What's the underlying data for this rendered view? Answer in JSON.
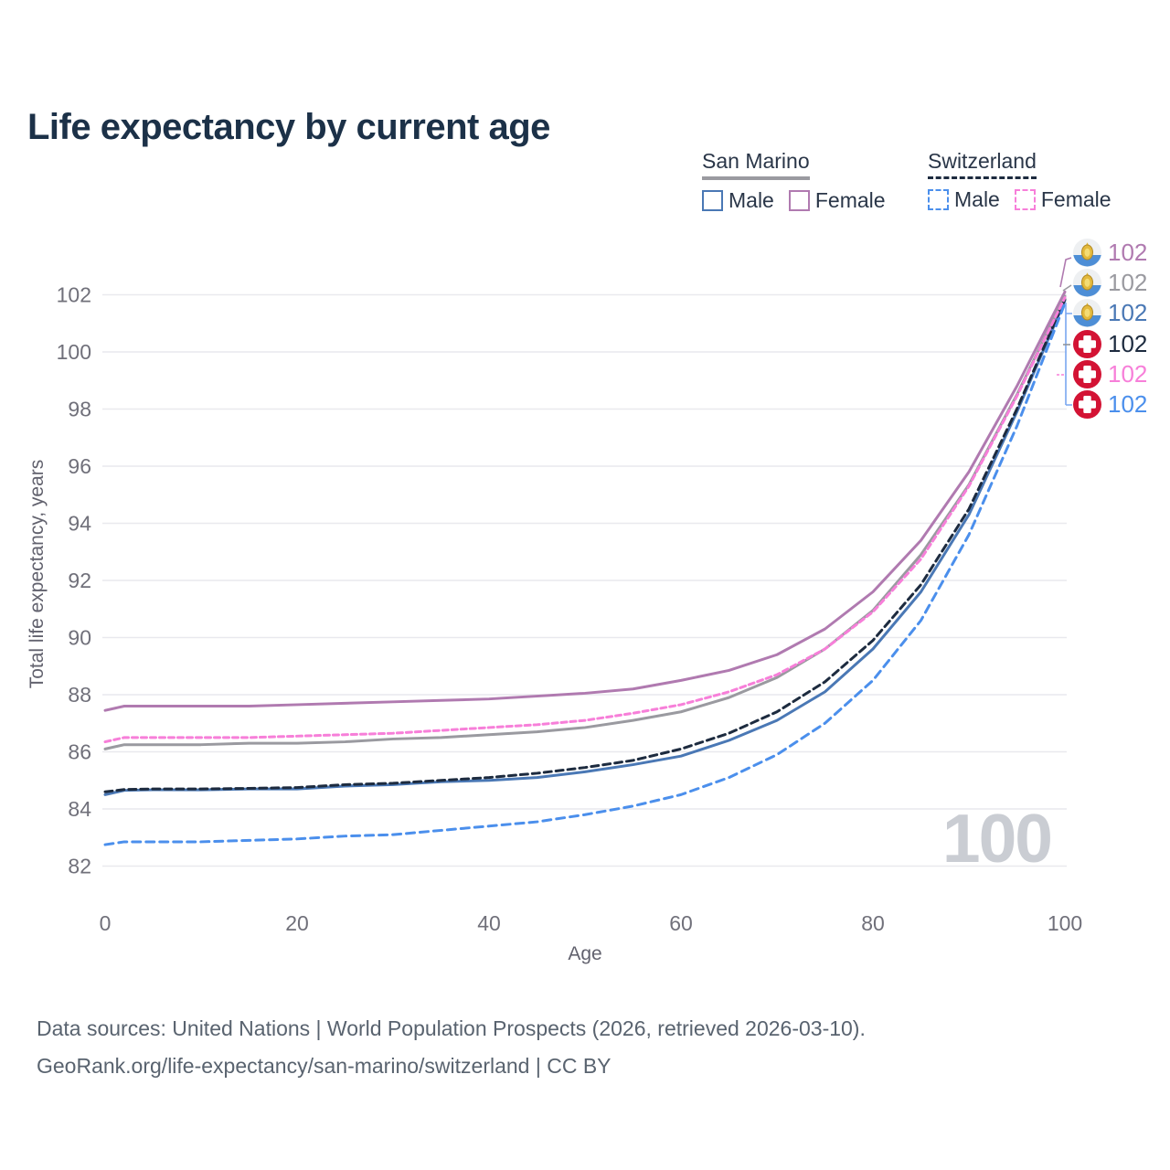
{
  "title": "Life expectancy by current age",
  "watermark": "100",
  "legend": {
    "groups": [
      {
        "id": "san-marino",
        "title": "San Marino",
        "line_style": "solid",
        "underline_color": "#9a9aa0",
        "items": [
          {
            "id": "male",
            "label": "Male",
            "color": "#4a78b5"
          },
          {
            "id": "female",
            "label": "Female",
            "color": "#b07ab0"
          }
        ]
      },
      {
        "id": "switzerland",
        "title": "Switzerland",
        "line_style": "dashed",
        "underline_color": "#1d2b3f",
        "items": [
          {
            "id": "male",
            "label": "Male",
            "color": "#4b8fec"
          },
          {
            "id": "female",
            "label": "Female",
            "color": "#f77fd9"
          }
        ]
      }
    ]
  },
  "axes": {
    "y_ticks": [
      82,
      84,
      86,
      88,
      90,
      92,
      94,
      96,
      98,
      100,
      102
    ],
    "x_ticks": [
      0,
      20,
      40,
      60,
      80,
      100
    ]
  },
  "chart_data": {
    "type": "line",
    "title": "Life expectancy by current age",
    "xlabel": "Age",
    "ylabel": "Total life expectancy, years",
    "xlim": [
      0,
      100
    ],
    "ylim": [
      82,
      103
    ],
    "grid": "horizontal",
    "x": [
      0,
      2,
      5,
      10,
      15,
      20,
      25,
      30,
      35,
      40,
      45,
      50,
      55,
      60,
      65,
      70,
      75,
      80,
      85,
      90,
      95,
      100
    ],
    "series": [
      {
        "id": "san-marino-female",
        "name": "San Marino Female",
        "color": "#b07ab0",
        "line_style": "solid",
        "values": [
          87.45,
          87.6,
          87.6,
          87.6,
          87.6,
          87.65,
          87.7,
          87.75,
          87.8,
          87.85,
          87.95,
          88.05,
          88.2,
          88.5,
          88.85,
          89.4,
          90.3,
          91.6,
          93.4,
          95.8,
          98.8,
          102.1
        ]
      },
      {
        "id": "san-marino-both",
        "name": "San Marino Both sexes",
        "color": "#9a9aa0",
        "line_style": "solid",
        "values": [
          86.1,
          86.25,
          86.25,
          86.25,
          86.3,
          86.3,
          86.35,
          86.45,
          86.5,
          86.6,
          86.7,
          86.85,
          87.1,
          87.4,
          87.9,
          88.6,
          89.6,
          90.95,
          92.9,
          95.35,
          98.5,
          101.95
        ]
      },
      {
        "id": "san-marino-male",
        "name": "San Marino Male",
        "color": "#4a78b5",
        "line_style": "solid",
        "values": [
          84.5,
          84.65,
          84.67,
          84.67,
          84.7,
          84.7,
          84.8,
          84.85,
          84.95,
          85.0,
          85.1,
          85.3,
          85.55,
          85.85,
          86.4,
          87.1,
          88.1,
          89.6,
          91.6,
          94.3,
          97.9,
          101.8
        ]
      },
      {
        "id": "switzerland-both",
        "name": "Switzerland Both sexes",
        "color": "#1d2b3f",
        "line_style": "dashed",
        "values": [
          84.6,
          84.68,
          84.7,
          84.7,
          84.72,
          84.75,
          84.85,
          84.9,
          85.0,
          85.1,
          85.25,
          85.45,
          85.7,
          86.1,
          86.65,
          87.4,
          88.45,
          89.9,
          91.85,
          94.5,
          98.0,
          101.85
        ]
      },
      {
        "id": "switzerland-female",
        "name": "Switzerland Female",
        "color": "#f77fd9",
        "line_style": "dashed",
        "values": [
          86.35,
          86.5,
          86.5,
          86.5,
          86.5,
          86.55,
          86.6,
          86.65,
          86.75,
          86.85,
          86.95,
          87.1,
          87.35,
          87.65,
          88.1,
          88.7,
          89.6,
          90.9,
          92.75,
          95.3,
          98.45,
          101.9
        ]
      },
      {
        "id": "switzerland-male",
        "name": "Switzerland Male",
        "color": "#4b8fec",
        "line_style": "dashed",
        "values": [
          82.75,
          82.85,
          82.85,
          82.85,
          82.9,
          82.95,
          83.05,
          83.1,
          83.25,
          83.4,
          83.55,
          83.8,
          84.1,
          84.5,
          85.1,
          85.9,
          87.0,
          88.5,
          90.6,
          93.6,
          97.4,
          101.7
        ]
      }
    ],
    "end_labels": [
      {
        "id": "san-marino-female",
        "text": "102",
        "flag": "san-marino",
        "color": "#b07ab0"
      },
      {
        "id": "san-marino-both",
        "text": "102",
        "flag": "san-marino",
        "color": "#9a9aa0"
      },
      {
        "id": "san-marino-male",
        "text": "102",
        "flag": "san-marino",
        "color": "#4a78b5"
      },
      {
        "id": "switzerland-both",
        "text": "102",
        "flag": "switzerland",
        "color": "#1d2b3f"
      },
      {
        "id": "switzerland-female",
        "text": "102",
        "flag": "switzerland",
        "color": "#f77fd9"
      },
      {
        "id": "switzerland-male",
        "text": "102",
        "flag": "switzerland",
        "color": "#4b8fec"
      }
    ]
  },
  "footer": {
    "line1": "Data sources: United Nations | World Population Prospects (2026, retrieved 2026-03-10).",
    "line2": "GeoRank.org/life-expectancy/san-marino/switzerland | CC BY"
  }
}
